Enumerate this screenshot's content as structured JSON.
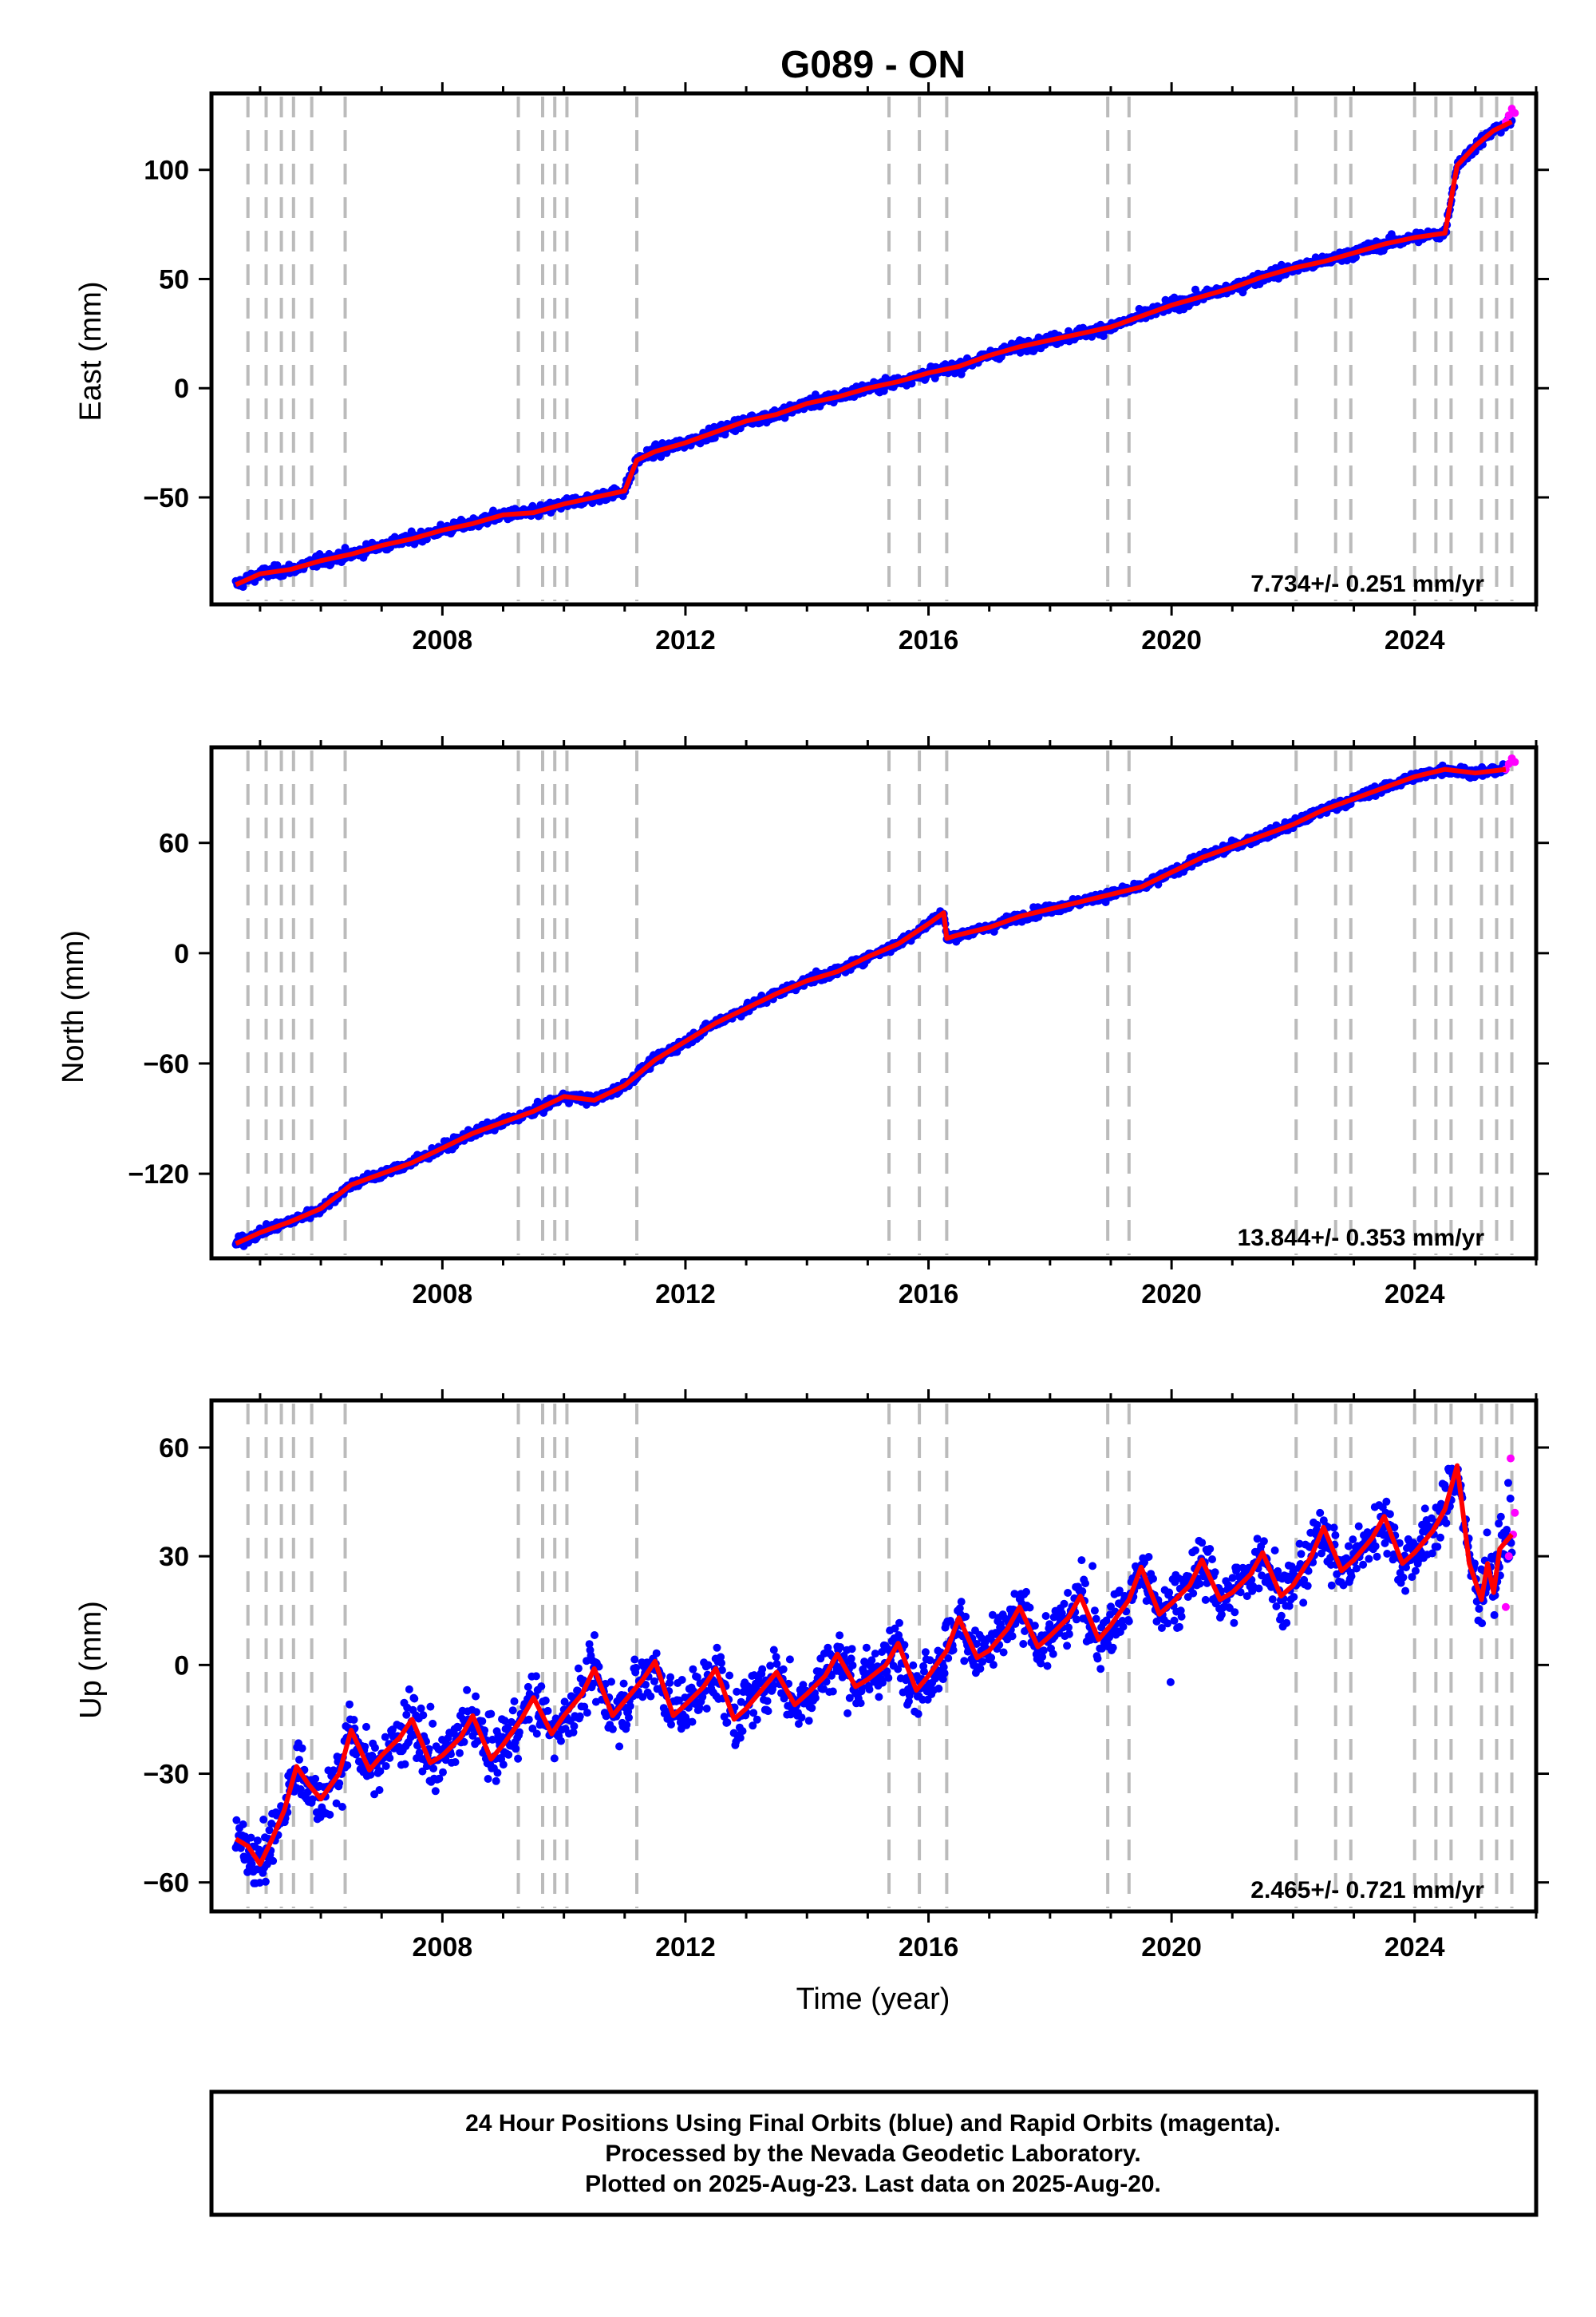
{
  "title": "G089 - ON",
  "xlabel": "Time (year)",
  "colors": {
    "final_orbits": "#0000ff",
    "rapid_orbits": "#ff00ff",
    "model": "#ff0000",
    "offset_lines": "#bbbbbb"
  },
  "caption": {
    "line1": "24 Hour Positions Using Final Orbits (blue) and Rapid Orbits (magenta).",
    "line2": "Processed by the Nevada Geodetic Laboratory.",
    "line3": "Plotted on 2025-Aug-23. Last data on 2025-Aug-20."
  },
  "chart_data": [
    {
      "type": "scatter",
      "ylabel": "East (mm)",
      "rate_label": "7.734+/- 0.251 mm/yr",
      "xlim": [
        2004.2,
        2026.0
      ],
      "ylim": [
        -99,
        135
      ],
      "xticks": [
        2008,
        2012,
        2016,
        2020,
        2024
      ],
      "yticks": [
        100,
        50,
        0,
        -50
      ],
      "offset_lines": [
        2004.8,
        2005.1,
        2005.35,
        2005.55,
        2005.85,
        2006.4,
        2009.25,
        2009.65,
        2009.85,
        2010.05,
        2011.2,
        2015.35,
        2015.85,
        2016.3,
        2018.95,
        2019.3,
        2022.05,
        2022.7,
        2022.95,
        2024.0,
        2024.35,
        2024.6,
        2025.1,
        2025.35,
        2025.6
      ],
      "series": [
        {
          "name": "Final Orbits",
          "x": [
            2004.6,
            2005.0,
            2005.5,
            2006.0,
            2006.5,
            2007.0,
            2007.5,
            2008.0,
            2008.5,
            2009.0,
            2009.5,
            2010.0,
            2010.5,
            2011.0,
            2011.2,
            2011.5,
            2012.0,
            2012.5,
            2013.0,
            2013.5,
            2014.0,
            2014.5,
            2015.0,
            2015.5,
            2016.0,
            2016.5,
            2017.0,
            2017.5,
            2018.0,
            2018.5,
            2019.0,
            2019.5,
            2020.0,
            2020.5,
            2021.0,
            2021.5,
            2022.0,
            2022.5,
            2023.0,
            2023.5,
            2024.0,
            2024.5,
            2024.7,
            2025.0,
            2025.3,
            2025.6
          ],
          "y": [
            -90,
            -85,
            -83,
            -79,
            -76,
            -72,
            -69,
            -65,
            -62,
            -58,
            -57,
            -53,
            -50,
            -47,
            -33,
            -29,
            -25,
            -20,
            -15,
            -12,
            -7,
            -4,
            0,
            3,
            7,
            10,
            15,
            19,
            22,
            25,
            28,
            33,
            38,
            42,
            46,
            51,
            55,
            58,
            62,
            66,
            69,
            71,
            102,
            111,
            118,
            122
          ]
        },
        {
          "name": "Rapid Orbits",
          "x": [
            2025.5,
            2025.55,
            2025.6,
            2025.65
          ],
          "y": [
            122,
            125,
            128,
            126
          ]
        }
      ]
    },
    {
      "type": "scatter",
      "ylabel": "North (mm)",
      "rate_label": "13.844+/- 0.353 mm/yr",
      "xlim": [
        2004.2,
        2026.0
      ],
      "ylim": [
        -166,
        112
      ],
      "xticks": [
        2008,
        2012,
        2016,
        2020,
        2024
      ],
      "yticks": [
        60,
        0,
        -60,
        -120
      ],
      "offset_lines": [
        2004.8,
        2005.1,
        2005.35,
        2005.55,
        2005.85,
        2006.4,
        2009.25,
        2009.65,
        2009.85,
        2010.05,
        2011.2,
        2015.35,
        2015.85,
        2016.3,
        2018.95,
        2019.3,
        2022.05,
        2022.7,
        2022.95,
        2024.0,
        2024.35,
        2024.6,
        2025.1,
        2025.35,
        2025.6
      ],
      "series": [
        {
          "name": "Final Orbits",
          "x": [
            2004.6,
            2005.0,
            2005.5,
            2006.0,
            2006.5,
            2007.0,
            2007.5,
            2008.0,
            2008.5,
            2009.0,
            2009.5,
            2010.0,
            2010.5,
            2011.0,
            2011.5,
            2012.0,
            2012.5,
            2013.0,
            2013.5,
            2014.0,
            2014.5,
            2015.0,
            2015.5,
            2016.0,
            2016.25,
            2016.3,
            2016.5,
            2017.0,
            2017.5,
            2018.0,
            2018.5,
            2019.0,
            2019.5,
            2020.0,
            2020.5,
            2021.0,
            2021.5,
            2022.0,
            2022.5,
            2023.0,
            2023.5,
            2024.0,
            2024.5,
            2025.0,
            2025.5
          ],
          "y": [
            -158,
            -152,
            -146,
            -139,
            -126,
            -120,
            -114,
            -106,
            -98,
            -92,
            -86,
            -78,
            -80,
            -72,
            -58,
            -48,
            -38,
            -30,
            -22,
            -15,
            -10,
            -2,
            5,
            16,
            22,
            8,
            10,
            14,
            20,
            24,
            28,
            32,
            36,
            44,
            52,
            58,
            64,
            70,
            78,
            84,
            90,
            96,
            100,
            98,
            100
          ]
        },
        {
          "name": "Rapid Orbits",
          "x": [
            2025.5,
            2025.55,
            2025.6,
            2025.65
          ],
          "y": [
            100,
            103,
            106,
            104
          ]
        }
      ]
    },
    {
      "type": "scatter",
      "ylabel": "Up (mm)",
      "rate_label": "2.465+/- 0.721 mm/yr",
      "xlim": [
        2004.2,
        2026.0
      ],
      "ylim": [
        -68,
        73
      ],
      "xticks": [
        2008,
        2012,
        2016,
        2020,
        2024
      ],
      "yticks": [
        60,
        30,
        0,
        -30,
        -60
      ],
      "offset_lines": [
        2004.8,
        2005.1,
        2005.35,
        2005.55,
        2005.85,
        2006.4,
        2009.25,
        2009.65,
        2009.85,
        2010.05,
        2011.2,
        2015.35,
        2015.85,
        2016.3,
        2018.95,
        2019.3,
        2022.05,
        2022.7,
        2022.95,
        2024.0,
        2024.35,
        2024.6,
        2025.1,
        2025.35,
        2025.6
      ],
      "series": [
        {
          "name": "Final Orbits",
          "x": [
            2004.6,
            2004.8,
            2005.0,
            2005.2,
            2005.4,
            2005.6,
            2005.8,
            2006.0,
            2006.3,
            2006.5,
            2006.8,
            2007.0,
            2007.3,
            2007.5,
            2007.8,
            2008.0,
            2008.3,
            2008.5,
            2008.8,
            2009.0,
            2009.3,
            2009.5,
            2009.8,
            2010.0,
            2010.3,
            2010.5,
            2010.8,
            2011.0,
            2011.3,
            2011.5,
            2011.8,
            2012.0,
            2012.3,
            2012.5,
            2012.8,
            2013.0,
            2013.3,
            2013.5,
            2013.8,
            2014.0,
            2014.3,
            2014.5,
            2014.8,
            2015.0,
            2015.3,
            2015.5,
            2015.8,
            2016.0,
            2016.3,
            2016.5,
            2016.8,
            2017.0,
            2017.3,
            2017.5,
            2017.8,
            2018.0,
            2018.3,
            2018.5,
            2018.8,
            2019.0,
            2019.3,
            2019.5,
            2019.8,
            2020.0,
            2020.3,
            2020.5,
            2020.8,
            2021.0,
            2021.3,
            2021.5,
            2021.8,
            2022.0,
            2022.3,
            2022.5,
            2022.8,
            2023.0,
            2023.3,
            2023.5,
            2023.8,
            2024.0,
            2024.3,
            2024.5,
            2024.7,
            2024.9,
            2025.1,
            2025.2,
            2025.3,
            2025.4,
            2025.6
          ],
          "y": [
            -48,
            -50,
            -55,
            -48,
            -40,
            -28,
            -33,
            -37,
            -30,
            -18,
            -29,
            -25,
            -20,
            -15,
            -27,
            -25,
            -20,
            -14,
            -26,
            -22,
            -15,
            -9,
            -19,
            -14,
            -8,
            -1,
            -14,
            -10,
            -4,
            1,
            -14,
            -11,
            -6,
            -1,
            -15,
            -12,
            -6,
            -2,
            -11,
            -8,
            -3,
            3,
            -6,
            -4,
            0,
            6,
            -7,
            -3,
            4,
            13,
            2,
            4,
            10,
            16,
            5,
            8,
            13,
            19,
            7,
            11,
            18,
            27,
            14,
            17,
            22,
            29,
            18,
            20,
            25,
            31,
            19,
            22,
            30,
            38,
            26,
            29,
            35,
            41,
            28,
            31,
            37,
            43,
            55,
            28,
            18,
            28,
            20,
            32,
            36
          ]
        },
        {
          "name": "Rapid Orbits",
          "x": [
            2025.5,
            2025.55,
            2025.58,
            2025.62,
            2025.65
          ],
          "y": [
            16,
            30,
            57,
            36,
            42
          ]
        }
      ]
    }
  ]
}
